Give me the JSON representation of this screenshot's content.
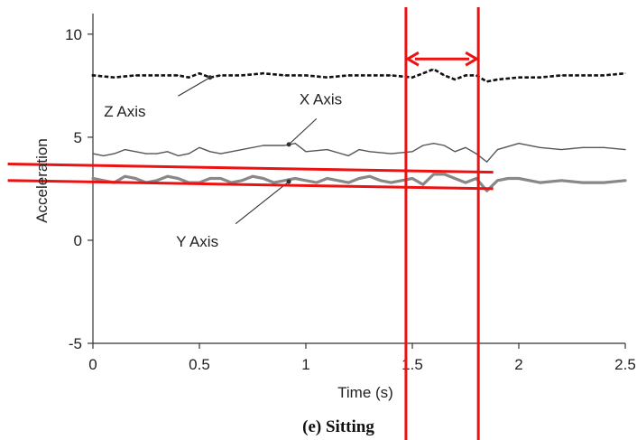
{
  "chart_data": {
    "type": "line",
    "xlabel": "Time (s)",
    "ylabel": "Acceleration",
    "caption": "(e) Sitting",
    "xlim": [
      0,
      2.5
    ],
    "ylim": [
      -5,
      11
    ],
    "xticks": [
      {
        "value": 0,
        "label": "0"
      },
      {
        "value": 0.5,
        "label": "0.5"
      },
      {
        "value": 1,
        "label": "1"
      },
      {
        "value": 1.5,
        "label": "1.5"
      },
      {
        "value": 2,
        "label": "2"
      },
      {
        "value": 2.5,
        "label": "2.5"
      }
    ],
    "yticks": [
      {
        "value": 10,
        "label": "10"
      },
      {
        "value": 5,
        "label": "5"
      },
      {
        "value": 0,
        "label": "0"
      },
      {
        "value": -5,
        "label": "-5"
      }
    ],
    "series": [
      {
        "name": "Z Axis",
        "style": "dotted",
        "color": "#111111",
        "x": [
          0,
          0.1,
          0.2,
          0.3,
          0.4,
          0.45,
          0.5,
          0.55,
          0.6,
          0.7,
          0.8,
          0.9,
          1.0,
          1.1,
          1.2,
          1.3,
          1.4,
          1.5,
          1.55,
          1.6,
          1.65,
          1.7,
          1.75,
          1.8,
          1.85,
          1.9,
          2.0,
          2.1,
          2.2,
          2.3,
          2.4,
          2.5
        ],
        "y": [
          8.0,
          7.9,
          8.0,
          8.0,
          8.0,
          7.9,
          8.1,
          7.9,
          8.0,
          8.0,
          8.1,
          8.0,
          8.0,
          7.9,
          8.0,
          8.0,
          8.0,
          7.9,
          8.1,
          8.3,
          8.0,
          7.8,
          8.0,
          8.0,
          7.7,
          7.8,
          7.9,
          7.9,
          8.0,
          8.0,
          8.0,
          8.1
        ]
      },
      {
        "name": "X Axis",
        "style": "solid",
        "color": "#555555",
        "x": [
          0,
          0.05,
          0.1,
          0.15,
          0.2,
          0.25,
          0.3,
          0.35,
          0.4,
          0.45,
          0.5,
          0.55,
          0.6,
          0.7,
          0.8,
          0.9,
          0.95,
          1.0,
          1.1,
          1.2,
          1.25,
          1.3,
          1.4,
          1.5,
          1.55,
          1.6,
          1.65,
          1.7,
          1.75,
          1.8,
          1.85,
          1.9,
          2.0,
          2.1,
          2.2,
          2.3,
          2.4,
          2.5
        ],
        "y": [
          4.2,
          4.1,
          4.2,
          4.4,
          4.3,
          4.2,
          4.2,
          4.3,
          4.1,
          4.2,
          4.5,
          4.3,
          4.2,
          4.4,
          4.6,
          4.6,
          4.7,
          4.3,
          4.4,
          4.1,
          4.4,
          4.3,
          4.2,
          4.3,
          4.6,
          4.7,
          4.6,
          4.3,
          4.5,
          4.2,
          3.8,
          4.4,
          4.7,
          4.5,
          4.4,
          4.5,
          4.5,
          4.4
        ]
      },
      {
        "name": "Y Axis",
        "style": "thick",
        "color": "#888888",
        "x": [
          0,
          0.05,
          0.1,
          0.15,
          0.2,
          0.25,
          0.3,
          0.35,
          0.4,
          0.45,
          0.5,
          0.55,
          0.6,
          0.65,
          0.7,
          0.75,
          0.8,
          0.85,
          0.9,
          0.95,
          1.0,
          1.05,
          1.1,
          1.15,
          1.2,
          1.25,
          1.3,
          1.35,
          1.4,
          1.45,
          1.5,
          1.55,
          1.6,
          1.65,
          1.7,
          1.75,
          1.8,
          1.85,
          1.9,
          1.95,
          2.0,
          2.1,
          2.2,
          2.3,
          2.4,
          2.5
        ],
        "y": [
          3.0,
          2.9,
          2.8,
          3.1,
          3.0,
          2.8,
          2.9,
          3.1,
          3.0,
          2.8,
          2.8,
          3.0,
          3.0,
          2.8,
          2.9,
          3.1,
          3.0,
          2.8,
          2.9,
          3.0,
          2.9,
          2.8,
          3.0,
          2.9,
          2.8,
          3.0,
          3.1,
          2.9,
          2.8,
          2.9,
          3.0,
          2.7,
          3.2,
          3.2,
          3.0,
          2.8,
          3.0,
          2.4,
          2.9,
          3.0,
          3.0,
          2.8,
          2.9,
          2.8,
          2.8,
          2.9
        ]
      }
    ],
    "annotations": {
      "vertical_lines_x": [
        1.47,
        1.81
      ],
      "line_color": "#ee1111",
      "horizontal_lines": [
        {
          "x": [
            -0.4,
            1.88
          ],
          "y": [
            3.7,
            3.3
          ]
        },
        {
          "x": [
            -0.4,
            1.88
          ],
          "y": [
            2.9,
            2.5
          ]
        }
      ],
      "arrow": {
        "x": [
          1.47,
          1.81
        ],
        "y": 8.8
      }
    },
    "label_callouts": [
      {
        "series": "Z Axis",
        "text_at": [
          0.15,
          6.0
        ],
        "pointer_from": [
          0.4,
          7.0
        ],
        "pointer_to": [
          0.55,
          7.9
        ]
      },
      {
        "series": "X Axis",
        "text_at": [
          1.07,
          6.6
        ],
        "pointer_from": [
          1.05,
          5.9
        ],
        "pointer_to": [
          0.92,
          4.65
        ]
      },
      {
        "series": "Y Axis",
        "text_at": [
          0.49,
          -0.3
        ],
        "pointer_from": [
          0.67,
          0.8
        ],
        "pointer_to": [
          0.92,
          2.85
        ]
      }
    ],
    "grid": false,
    "legend": "none"
  }
}
